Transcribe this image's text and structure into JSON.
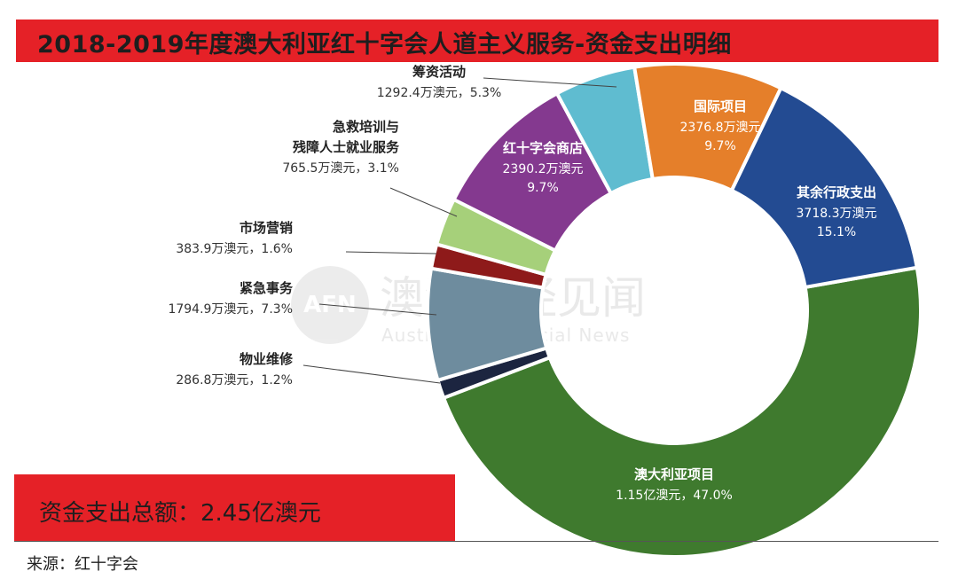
{
  "title": "2018-2019年度澳大利亚红十字会人道主义服务-资金支出明细",
  "total_label": "资金支出总额：2.45亿澳元",
  "source": "来源：红十字会",
  "watermark": {
    "logo_text": "AFN",
    "name_cn": "澳洲财经见闻",
    "name_en": "Australian Financial News"
  },
  "chart_data": {
    "type": "pie",
    "style": "donut",
    "slices": [
      {
        "name": "澳大利亚项目",
        "value_label": "1.15亿澳元，47.0%",
        "percent": 47.0,
        "color": "#3f7a2e",
        "label_style": "inside"
      },
      {
        "name": "物业维修",
        "value_label": "286.8万澳元，1.2%",
        "percent": 1.2,
        "color": "#1c2540",
        "label_style": "outside"
      },
      {
        "name": "紧急事务",
        "value_label": "1794.9万澳元，7.3%",
        "percent": 7.3,
        "color": "#6e8c9e",
        "label_style": "outside"
      },
      {
        "name": "市场营销",
        "value_label": "383.9万澳元，1.6%",
        "percent": 1.6,
        "color": "#8e1a1a",
        "label_style": "outside"
      },
      {
        "name_lines": [
          "急救培训与",
          "残障人士就业服务"
        ],
        "value_label": "765.5万澳元，3.1%",
        "percent": 3.1,
        "color": "#a6d07a",
        "label_style": "outside"
      },
      {
        "name": "红十字会商店",
        "value_lines": [
          "2390.2万澳元",
          "9.7%"
        ],
        "percent": 9.7,
        "color": "#84398f",
        "label_style": "inside"
      },
      {
        "name": "筹资活动",
        "value_label": "1292.4万澳元，5.3%",
        "percent": 5.3,
        "color": "#5fbcd0",
        "label_style": "outside"
      },
      {
        "name": "国际项目",
        "value_lines": [
          "2376.8万澳元",
          "9.7%"
        ],
        "percent": 9.7,
        "color": "#e57f2a",
        "label_style": "inside"
      },
      {
        "name": "其余行政支出",
        "value_lines": [
          "3718.3万澳元",
          "15.1%"
        ],
        "percent": 15.1,
        "color": "#234b92",
        "label_style": "inside"
      }
    ]
  }
}
